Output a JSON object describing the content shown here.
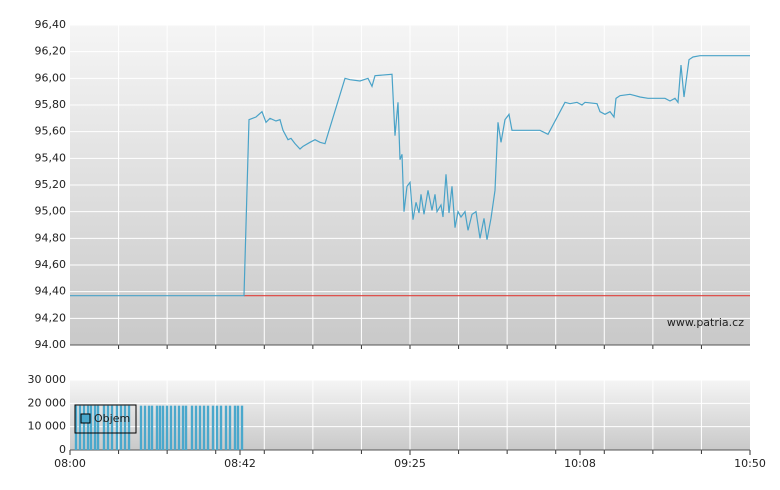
{
  "chart_data": [
    {
      "type": "line",
      "xlim": [
        0,
        170
      ],
      "ylim": [
        94,
        96.4
      ],
      "yticks": [
        {
          "value": 94,
          "label": "94.00"
        },
        {
          "value": 94.2,
          "label": "94,20"
        },
        {
          "value": 94.4,
          "label": "94,40"
        },
        {
          "value": 94.6,
          "label": "94,60"
        },
        {
          "value": 94.8,
          "label": "94,80"
        },
        {
          "value": 95,
          "label": "95,00"
        },
        {
          "value": 95.2,
          "label": "95,20"
        },
        {
          "value": 95.4,
          "label": "95,40"
        },
        {
          "value": 95.6,
          "label": "95,60"
        },
        {
          "value": 95.8,
          "label": "95,80"
        },
        {
          "value": 96,
          "label": "96,00"
        },
        {
          "value": 96.2,
          "label": "96,20"
        },
        {
          "value": 96.4,
          "label": "96,40"
        }
      ],
      "grid": true,
      "annotation": "www.patria.cz",
      "reference_line": {
        "value": 94.37,
        "from": 43.5,
        "color": "#e0403c"
      },
      "series": [
        {
          "color": "#4aa3c8",
          "x": [
            0,
            43.5,
            44.75,
            46.5,
            48,
            49,
            50,
            51.5,
            52.5,
            53.25,
            54.5,
            55.25,
            56.25,
            57.5,
            58.25,
            60,
            61.25,
            62.5,
            63.75,
            68.75,
            70,
            72.5,
            74.5,
            75.5,
            76.25,
            80.5,
            81.25,
            82,
            82.5,
            83,
            83.5,
            84.25,
            85,
            85.75,
            86.5,
            87.25,
            87.75,
            88.5,
            89.5,
            90.5,
            91.25,
            91.75,
            92.75,
            93.25,
            94,
            94.75,
            95.5,
            96.25,
            97,
            97.75,
            98.75,
            99.5,
            100.5,
            101.5,
            102.5,
            103.5,
            104.25,
            105.25,
            106.25,
            107,
            107.75,
            108.75,
            109.75,
            110.5,
            117.5,
            119.5,
            123.75,
            125,
            126.75,
            128,
            128.75,
            131.75,
            132.5,
            133.75,
            135,
            136,
            136.5,
            137.5,
            140,
            142.5,
            144.5,
            146.25,
            148.75,
            150,
            151.25,
            152,
            152.75,
            153.5,
            154.75,
            155.75,
            157.5,
            170
          ],
          "values": [
            94.37,
            94.37,
            95.69,
            95.71,
            95.75,
            95.67,
            95.7,
            95.68,
            95.69,
            95.61,
            95.54,
            95.55,
            95.51,
            95.47,
            95.49,
            95.52,
            95.54,
            95.52,
            95.51,
            96.0,
            95.99,
            95.98,
            96.0,
            95.94,
            96.02,
            96.03,
            95.57,
            95.82,
            95.39,
            95.43,
            95.0,
            95.19,
            95.22,
            94.94,
            95.07,
            94.99,
            95.13,
            94.98,
            95.16,
            95.01,
            95.13,
            95.0,
            95.05,
            94.96,
            95.28,
            94.99,
            95.19,
            94.88,
            95.0,
            94.96,
            95.0,
            94.86,
            94.98,
            95.0,
            94.8,
            94.95,
            94.79,
            94.95,
            95.16,
            95.67,
            95.52,
            95.69,
            95.73,
            95.61,
            95.61,
            95.58,
            95.82,
            95.81,
            95.82,
            95.8,
            95.82,
            95.81,
            95.75,
            95.73,
            95.75,
            95.71,
            95.85,
            95.87,
            95.88,
            95.86,
            95.85,
            95.85,
            95.85,
            95.83,
            95.85,
            95.82,
            96.1,
            95.86,
            96.14,
            96.16,
            96.17,
            96.17
          ]
        }
      ]
    },
    {
      "type": "bar",
      "xlim": [
        0,
        170
      ],
      "xticks": [
        {
          "value": 0,
          "label": "08:00"
        },
        {
          "value": 42.5,
          "label": "08:42"
        },
        {
          "value": 85,
          "label": "09:25"
        },
        {
          "value": 127.5,
          "label": "10:08"
        },
        {
          "value": 170,
          "label": "10:50"
        }
      ],
      "ylim": [
        0,
        30000
      ],
      "yticks": [
        0,
        {
          "value": 10000,
          "label": "10 000"
        },
        {
          "value": 20000,
          "label": "20 000"
        },
        {
          "value": 30000,
          "label": "30 000"
        }
      ],
      "grid": true,
      "legend": "top-left",
      "series": [
        {
          "name": "Objem",
          "color": "#4aa8cc",
          "x": [
            1.5,
            2.5,
            3.5,
            4.5,
            5.25,
            6.25,
            7,
            8.5,
            9.5,
            10.5,
            11.75,
            12.75,
            13.75,
            14.75,
            17.75,
            18.75,
            19.75,
            20.5,
            21.75,
            22.5,
            23.25,
            24.25,
            25.25,
            26.25,
            27.25,
            28.25,
            29,
            30.5,
            31.5,
            32.5,
            33.5,
            34.5,
            35.75,
            36.75,
            37.75,
            39,
            40,
            41.25,
            42,
            43
          ],
          "values": [
            19000,
            19000,
            19000,
            19000,
            19000,
            19000,
            19000,
            19000,
            19000,
            19000,
            19000,
            19000,
            19000,
            19000,
            19000,
            19000,
            19000,
            19000,
            19000,
            19000,
            19000,
            19000,
            19000,
            19000,
            19000,
            19000,
            19000,
            19000,
            19000,
            19000,
            19000,
            19000,
            19000,
            19000,
            19000,
            19000,
            19000,
            19000,
            19000,
            19000
          ]
        }
      ]
    }
  ]
}
